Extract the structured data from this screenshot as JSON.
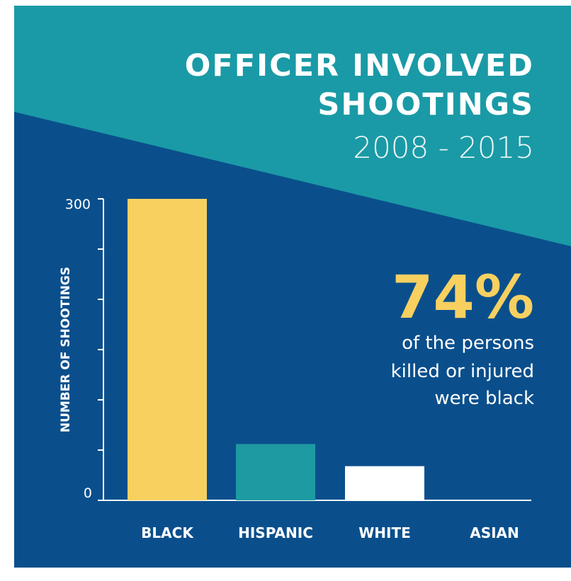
{
  "title_line1": "OFFICER INVOLVED",
  "title_line2": "SHOOTINGS",
  "subtitle": "2008 - 2015",
  "highlight": {
    "value": "74%",
    "line1": "of the persons",
    "line2": "killed or injured",
    "line3": "were black"
  },
  "colors": {
    "background": "#0a4f8c",
    "band": "#1a9aa6",
    "black_bar": "#f7d060",
    "hispanic_bar": "#1e9aa3",
    "white_bar": "#ffffff",
    "asian_bar": "#ffffff",
    "axis": "#ffffff"
  },
  "chart_data": {
    "type": "bar",
    "categories": [
      "BLACK",
      "HISPANIC",
      "WHITE",
      "ASIAN"
    ],
    "values": [
      300,
      56,
      34,
      0
    ],
    "ylabel": "NUMBER OF SHOOTINGS",
    "ylim": [
      0,
      300
    ],
    "ytick_labels": [
      "0",
      "300"
    ],
    "minor_ticks": 6,
    "grid": false,
    "legend": "none"
  }
}
